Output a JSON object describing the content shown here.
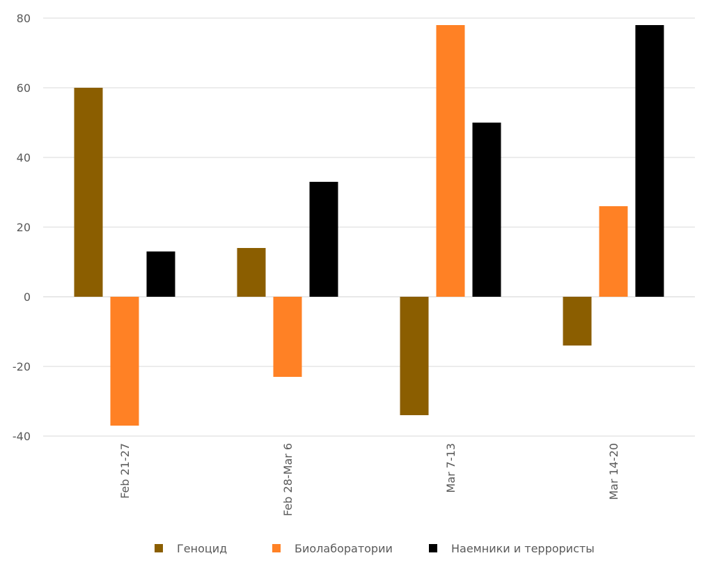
{
  "chart_data": {
    "type": "bar",
    "categories": [
      "Feb 21-27",
      "Feb 28-Mar 6",
      "Mar 7-13",
      "Mar 14-20"
    ],
    "series": [
      {
        "name": "Геноцид",
        "color": "#8B5E00",
        "values": [
          60,
          14,
          -34,
          -14
        ]
      },
      {
        "name": "Биолаборатории",
        "color": "#FF8125",
        "values": [
          -37,
          -23,
          78,
          26
        ]
      },
      {
        "name": "Наемники и террористы",
        "color": "#000000",
        "values": [
          13,
          33,
          50,
          78
        ]
      }
    ],
    "yticks": [
      "80",
      "60",
      "40",
      "20",
      "0",
      "-20",
      "-40"
    ],
    "ylim": [
      -40,
      80
    ],
    "grid": true,
    "legend_position": "bottom"
  }
}
